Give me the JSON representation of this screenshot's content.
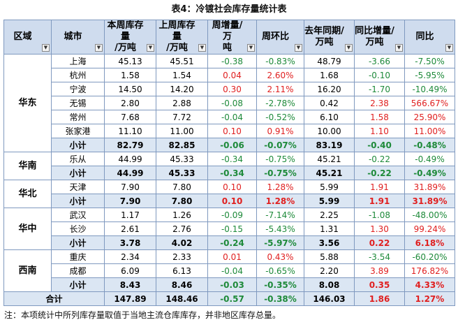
{
  "title": "表4：冷镀社会库存量统计表",
  "headers": [
    "区域",
    "城市",
    "本周库存量\n/万吨",
    "上周库存量\n/万吨",
    "周增量/万\n吨",
    "周环比",
    "去年同期/\n万吨",
    "同比增量/\n万吨",
    "同比"
  ],
  "regions": [
    {
      "name": "华东",
      "rows": [
        [
          "上海",
          "45.13",
          "45.51",
          "-0.38",
          "-0.83%",
          "48.79",
          "-3.66",
          "-7.50%"
        ],
        [
          "杭州",
          "1.58",
          "1.54",
          "0.04",
          "2.60%",
          "1.68",
          "-0.10",
          "-5.95%"
        ],
        [
          "宁波",
          "14.50",
          "14.20",
          "0.30",
          "2.11%",
          "16.20",
          "-1.70",
          "-10.49%"
        ],
        [
          "无锡",
          "2.80",
          "2.88",
          "-0.08",
          "-2.78%",
          "0.42",
          "2.38",
          "566.67%"
        ],
        [
          "常州",
          "7.68",
          "7.72",
          "-0.04",
          "-0.52%",
          "6.10",
          "1.58",
          "25.90%"
        ],
        [
          "张家港",
          "11.10",
          "11.00",
          "0.10",
          "0.91%",
          "10.00",
          "1.10",
          "11.00%"
        ]
      ],
      "subtotal": [
        "小计",
        "82.79",
        "82.85",
        "-0.06",
        "-0.07%",
        "83.19",
        "-0.40",
        "-0.48%"
      ]
    },
    {
      "name": "华南",
      "rows": [
        [
          "乐从",
          "44.99",
          "45.33",
          "-0.34",
          "-0.75%",
          "45.21",
          "-0.22",
          "-0.49%"
        ]
      ],
      "subtotal": [
        "小计",
        "44.99",
        "45.33",
        "-0.34",
        "-0.75%",
        "45.21",
        "-0.22",
        "-0.49%"
      ]
    },
    {
      "name": "华北",
      "rows": [
        [
          "天津",
          "7.90",
          "7.80",
          "0.10",
          "1.28%",
          "5.99",
          "1.91",
          "31.89%"
        ]
      ],
      "subtotal": [
        "小计",
        "7.90",
        "7.80",
        "0.10",
        "1.28%",
        "5.99",
        "1.91",
        "31.89%"
      ]
    },
    {
      "name": "华中",
      "rows": [
        [
          "武汉",
          "1.17",
          "1.26",
          "-0.09",
          "-7.14%",
          "2.25",
          "-1.08",
          "-48.00%"
        ],
        [
          "长沙",
          "2.61",
          "2.76",
          "-0.15",
          "-5.43%",
          "1.31",
          "1.30",
          "99.24%"
        ]
      ],
      "subtotal": [
        "小计",
        "3.78",
        "4.02",
        "-0.24",
        "-5.97%",
        "3.56",
        "0.22",
        "6.18%"
      ]
    },
    {
      "name": "西南",
      "rows": [
        [
          "重庆",
          "2.34",
          "2.33",
          "0.01",
          "0.43%",
          "5.88",
          "-3.54",
          "-60.20%"
        ],
        [
          "成都",
          "6.09",
          "6.13",
          "-0.04",
          "-0.65%",
          "2.20",
          "3.89",
          "176.82%"
        ]
      ],
      "subtotal": [
        "小计",
        "8.43",
        "8.46",
        "-0.03",
        "-0.35%",
        "8.08",
        "0.35",
        "4.33%"
      ]
    }
  ],
  "total": {
    "label": "合计",
    "values": [
      "147.89",
      "148.46",
      "-0.57",
      "-0.38%",
      "146.03",
      "1.86",
      "1.27%"
    ]
  },
  "note": "注：本项统计中所列库存量取值于当地主流仓库库存，并非地区库存总量。",
  "colors": {
    "positive": "#e02020",
    "negative": "#1e8a3a",
    "header_bg": "#cfdcee",
    "subtotal_bg": "#dbe6f3"
  }
}
